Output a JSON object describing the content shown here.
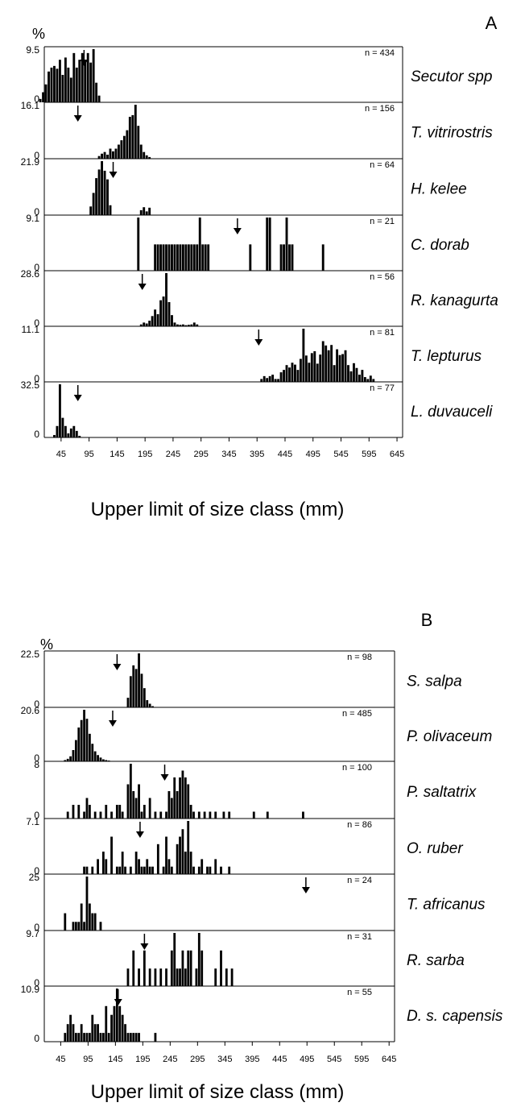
{
  "chart_data": [
    {
      "type": "bar",
      "panel_label": "A",
      "ylabel": "%",
      "xlabel": "Upper limit of size class (mm)",
      "x_ticks": [
        "45",
        "95",
        "145",
        "195",
        "245",
        "295",
        "345",
        "395",
        "445",
        "495",
        "545",
        "595",
        "645"
      ],
      "xlim": [
        15,
        655
      ],
      "grid": false,
      "subplots": [
        {
          "name": "Secutor spp",
          "n_label": "n = 434",
          "ymax_label": "9.5",
          "ymin_label": "0",
          "ymax": 9.5,
          "arrow_x": 86,
          "x": [
            10,
            15,
            20,
            25,
            30,
            35,
            40,
            45,
            50,
            55,
            60,
            65,
            70,
            75,
            80,
            85,
            90,
            95,
            100,
            105,
            110,
            115
          ],
          "y": [
            0.6,
            1.8,
            3.2,
            5.5,
            6.2,
            6.5,
            6.0,
            7.6,
            4.9,
            8.0,
            6.2,
            4.4,
            8.8,
            6.2,
            7.6,
            8.8,
            7.1,
            8.8,
            7.1,
            9.5,
            3.5,
            1.2
          ]
        },
        {
          "name": "T. vitrirostris",
          "n_label": "n = 156",
          "ymax_label": "16.1",
          "ymin_label": "0",
          "ymax": 16.1,
          "arrow_x": 75,
          "x": [
            115,
            120,
            125,
            130,
            135,
            140,
            145,
            150,
            155,
            160,
            165,
            170,
            175,
            180,
            185,
            190,
            195,
            200,
            205
          ],
          "y": [
            0.8,
            1.5,
            2.0,
            1.2,
            3.0,
            2.2,
            3.0,
            4.2,
            5.5,
            6.8,
            8.5,
            12.5,
            13.0,
            16.1,
            9.8,
            4.2,
            2.0,
            1.0,
            0.5
          ]
        },
        {
          "name": "H. kelee",
          "n_label": "n = 64",
          "ymax_label": "21.9",
          "ymin_label": "0",
          "ymax": 21.9,
          "arrow_x": 138,
          "x": [
            100,
            105,
            110,
            115,
            120,
            125,
            130,
            135,
            190,
            195,
            200,
            205
          ],
          "y": [
            3.5,
            9.0,
            15.0,
            18.5,
            21.9,
            18.0,
            14.5,
            4.0,
            2.0,
            3.2,
            1.5,
            3.0
          ]
        },
        {
          "name": "C. dorab",
          "n_label": "n = 21",
          "ymax_label": "9.1",
          "ymin_label": "0",
          "ymax": 9.1,
          "arrow_x": 360,
          "x": [
            185,
            215,
            220,
            225,
            230,
            235,
            240,
            245,
            250,
            255,
            260,
            265,
            270,
            275,
            280,
            285,
            290,
            295,
            300,
            305,
            310,
            385,
            415,
            420,
            440,
            445,
            450,
            455,
            460,
            515
          ],
          "y": [
            9.1,
            4.5,
            4.5,
            4.5,
            4.5,
            4.5,
            4.5,
            4.5,
            4.5,
            4.5,
            4.5,
            4.5,
            4.5,
            4.5,
            4.5,
            4.5,
            4.5,
            9.1,
            4.5,
            4.5,
            4.5,
            4.5,
            9.1,
            9.1,
            4.5,
            4.5,
            9.1,
            4.5,
            4.5,
            4.5
          ]
        },
        {
          "name": "R. kanagurta",
          "n_label": "n = 56",
          "ymax_label": "28.6",
          "ymin_label": "0",
          "ymax": 28.6,
          "arrow_x": 190,
          "x": [
            190,
            195,
            200,
            205,
            210,
            215,
            220,
            225,
            230,
            235,
            240,
            245,
            250,
            255,
            260,
            265,
            270,
            275,
            280,
            285,
            290
          ],
          "y": [
            1.0,
            2.0,
            1.5,
            3.0,
            5.5,
            9.0,
            6.5,
            14.0,
            16.0,
            28.6,
            13.0,
            6.0,
            2.0,
            1.0,
            0.8,
            1.0,
            0.6,
            0.8,
            1.0,
            2.0,
            1.0
          ]
        },
        {
          "name": "T. lepturus",
          "n_label": "n = 81",
          "ymax_label": "11.1",
          "ymin_label": "0",
          "ymax": 11.1,
          "arrow_x": 398,
          "x": [
            405,
            410,
            415,
            420,
            425,
            430,
            435,
            440,
            445,
            450,
            455,
            460,
            465,
            470,
            475,
            480,
            485,
            490,
            495,
            500,
            505,
            510,
            515,
            520,
            525,
            530,
            535,
            540,
            545,
            550,
            555,
            560,
            565,
            570,
            575,
            580,
            585,
            590,
            595,
            600,
            605,
            610,
            615,
            620,
            625
          ],
          "y": [
            0.6,
            1.2,
            0.8,
            1.2,
            1.5,
            0.6,
            0.6,
            2.0,
            2.5,
            3.5,
            3.0,
            4.0,
            3.6,
            2.5,
            4.8,
            11.1,
            5.5,
            4.0,
            6.0,
            6.4,
            3.8,
            5.7,
            8.5,
            7.6,
            6.6,
            7.7,
            3.5,
            6.8,
            5.6,
            5.8,
            6.6,
            3.5,
            2.2,
            3.9,
            2.9,
            1.5,
            2.5,
            1.0,
            0.6,
            1.3,
            0.6,
            0.0,
            0.0,
            0.0,
            0.0
          ]
        },
        {
          "name": "L. duvauceli",
          "n_label": "n = 77",
          "ymax_label": "32.5",
          "ymin_label": "0",
          "ymax": 32.5,
          "arrow_x": 75,
          "x": [
            35,
            40,
            45,
            50,
            55,
            60,
            65,
            70,
            75,
            80
          ],
          "y": [
            1.5,
            7.0,
            32.5,
            12.0,
            7.0,
            2.5,
            5.5,
            7.0,
            4.0,
            1.0
          ]
        }
      ]
    },
    {
      "type": "bar",
      "panel_label": "B",
      "ylabel": "%",
      "xlabel": "Upper limit of size class (mm)",
      "x_ticks": [
        "45",
        "95",
        "145",
        "195",
        "245",
        "295",
        "345",
        "395",
        "445",
        "495",
        "545",
        "595",
        "645"
      ],
      "xlim": [
        15,
        655
      ],
      "grid": false,
      "subplots": [
        {
          "name": "S. salpa",
          "n_label": "n = 98",
          "ymax_label": "22.5",
          "ymin_label": "0",
          "ymax": 22.5,
          "arrow_x": 148,
          "x": [
            170,
            175,
            180,
            185,
            190,
            195,
            200,
            205,
            210,
            215
          ],
          "y": [
            4.0,
            13.0,
            17.5,
            16.0,
            22.5,
            14.0,
            8.0,
            3.0,
            1.5,
            0.5
          ]
        },
        {
          "name": "P. olivaceum",
          "n_label": "n = 485",
          "ymax_label": "20.6",
          "ymin_label": "0",
          "ymax": 20.6,
          "arrow_x": 140,
          "x": [
            55,
            60,
            65,
            70,
            75,
            80,
            85,
            90,
            95,
            100,
            105,
            110,
            115,
            120,
            125,
            130,
            135
          ],
          "y": [
            0.5,
            1.0,
            2.0,
            4.5,
            8.5,
            13.5,
            16.5,
            20.6,
            17.0,
            11.0,
            7.0,
            4.0,
            2.5,
            1.5,
            0.8,
            0.5,
            0.3
          ]
        },
        {
          "name": "P. saltatrix",
          "n_label": "n = 100",
          "ymax_label": "8",
          "ymin_label": "0",
          "ymax": 8,
          "arrow_x": 235,
          "x": [
            60,
            70,
            80,
            90,
            95,
            100,
            110,
            120,
            130,
            140,
            150,
            155,
            160,
            170,
            175,
            180,
            185,
            190,
            195,
            200,
            210,
            220,
            230,
            240,
            245,
            250,
            255,
            260,
            265,
            270,
            275,
            280,
            285,
            290,
            300,
            310,
            320,
            330,
            345,
            355,
            400,
            425,
            490
          ],
          "y": [
            1.0,
            2.0,
            2.0,
            1.0,
            3.0,
            2.0,
            1.0,
            1.0,
            2.0,
            1.0,
            2.0,
            2.0,
            1.0,
            5.0,
            8.0,
            4.0,
            3.0,
            5.0,
            1.0,
            2.0,
            3.0,
            1.0,
            1.0,
            1.0,
            4.0,
            3.0,
            6.0,
            4.0,
            6.0,
            7.0,
            6.0,
            5.0,
            2.0,
            1.0,
            1.0,
            1.0,
            1.0,
            1.0,
            1.0,
            1.0,
            1.0,
            1.0,
            1.0
          ]
        },
        {
          "name": "O. ruber",
          "n_label": "n = 86",
          "ymax_label": "7.1",
          "ymin_label": "0",
          "ymax": 7.1,
          "arrow_x": 190,
          "x": [
            90,
            95,
            105,
            115,
            125,
            130,
            140,
            150,
            155,
            160,
            165,
            175,
            185,
            190,
            195,
            200,
            205,
            210,
            215,
            225,
            235,
            240,
            245,
            250,
            260,
            265,
            270,
            275,
            280,
            285,
            290,
            300,
            305,
            315,
            320,
            330,
            340,
            355
          ],
          "y": [
            1.0,
            1.0,
            1.0,
            2.0,
            3.0,
            2.0,
            5.0,
            1.0,
            1.0,
            3.0,
            1.0,
            1.0,
            3.0,
            2.0,
            1.0,
            1.0,
            2.0,
            1.0,
            1.0,
            4.0,
            1.0,
            5.0,
            2.0,
            1.0,
            4.0,
            5.0,
            6.0,
            3.0,
            7.1,
            3.0,
            1.0,
            1.0,
            2.0,
            1.0,
            1.0,
            2.0,
            1.0,
            1.0
          ]
        },
        {
          "name": "T. africanus",
          "n_label": "n = 24",
          "ymax_label": "25",
          "ymin_label": "0",
          "ymax": 25,
          "arrow_x": 493,
          "x": [
            55,
            70,
            75,
            80,
            85,
            90,
            95,
            100,
            105,
            110,
            120
          ],
          "y": [
            8.0,
            4.0,
            4.0,
            4.0,
            12.5,
            4.0,
            25.0,
            12.5,
            8.0,
            8.0,
            4.0
          ]
        },
        {
          "name": "R. sarba",
          "n_label": "n = 31",
          "ymax_label": "9.7",
          "ymin_label": "0",
          "ymax": 9.7,
          "arrow_x": 198,
          "x": [
            170,
            180,
            190,
            200,
            210,
            220,
            230,
            240,
            250,
            255,
            260,
            265,
            270,
            275,
            280,
            285,
            295,
            300,
            305,
            330,
            340,
            350,
            360
          ],
          "y": [
            3.2,
            6.5,
            3.2,
            6.5,
            3.2,
            3.2,
            3.2,
            3.2,
            6.5,
            9.7,
            3.2,
            3.2,
            6.5,
            3.2,
            6.5,
            6.5,
            3.2,
            9.7,
            6.5,
            3.2,
            6.5,
            3.2,
            3.2
          ]
        },
        {
          "name": "D. s. capensis",
          "n_label": "n = 55",
          "ymax_label": "10.9",
          "ymin_label": "0",
          "ymax": 10.9,
          "arrow_x": 150,
          "x": [
            55,
            60,
            65,
            70,
            75,
            80,
            85,
            90,
            95,
            100,
            105,
            110,
            115,
            120,
            125,
            130,
            135,
            140,
            145,
            150,
            155,
            160,
            165,
            170,
            175,
            180,
            185,
            190,
            220
          ],
          "y": [
            1.8,
            3.6,
            5.5,
            3.6,
            1.8,
            1.8,
            3.6,
            1.8,
            1.8,
            1.8,
            5.5,
            3.6,
            3.6,
            1.8,
            1.8,
            7.3,
            1.8,
            5.5,
            7.3,
            10.9,
            7.3,
            5.5,
            3.6,
            1.8,
            1.8,
            1.8,
            1.8,
            1.8,
            1.8
          ]
        }
      ]
    }
  ]
}
